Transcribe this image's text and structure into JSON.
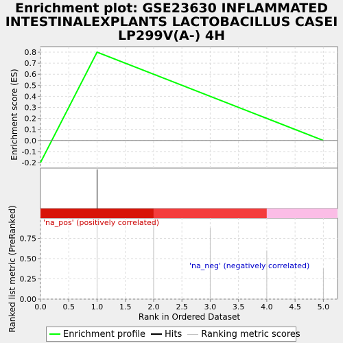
{
  "title_lines": [
    "Enrichment plot: GSE23630 INFLAMMATED",
    "INTESTINALEXPLANTS LACTOBACILLUS CASEI",
    "LP299V(A-) 4H"
  ],
  "chart_data": {
    "type": "line",
    "xlabel": "Rank in Ordered Dataset",
    "x_ticks": [
      "0.0",
      "0.5",
      "1.0",
      "1.5",
      "2.0",
      "2.5",
      "3.0",
      "3.5",
      "4.0",
      "4.5",
      "5.0"
    ],
    "xlim": [
      0,
      5.25
    ],
    "es_panel": {
      "ylabel": "Enrichment score (ES)",
      "ylim": [
        -0.25,
        0.85
      ],
      "y_ticks": [
        "-0.2",
        "-0.1",
        "0.0",
        "0.1",
        "0.2",
        "0.3",
        "0.4",
        "0.5",
        "0.6",
        "0.7",
        "0.8"
      ],
      "series": [
        {
          "name": "Enrichment profile",
          "color": "#00ff00",
          "x": [
            0,
            1,
            5
          ],
          "y": [
            -0.2,
            0.8,
            0
          ]
        }
      ]
    },
    "hits": [
      1
    ],
    "ranked_panel": {
      "ylabel": "Ranked list metric (PreRanked)",
      "ylim": [
        0,
        1
      ],
      "y_ticks": [
        "0.00",
        "0.25",
        "0.50",
        "0.75"
      ],
      "x": [
        1,
        2,
        3,
        4,
        5
      ],
      "values": [
        1.0,
        0.95,
        0.88,
        0.6,
        0.38
      ],
      "pos_label": "'na_pos' (positively correlated)",
      "neg_label": "'na_neg' (negatively correlated)"
    },
    "colorbar": [
      "#d81408",
      "#f43c3c",
      "#fbbde6"
    ]
  },
  "legend": [
    {
      "label": "Enrichment profile",
      "color": "#00ff00"
    },
    {
      "label": "Hits",
      "color": "#000000"
    },
    {
      "label": "Ranking metric scores",
      "color": "#c0c0c0"
    }
  ]
}
